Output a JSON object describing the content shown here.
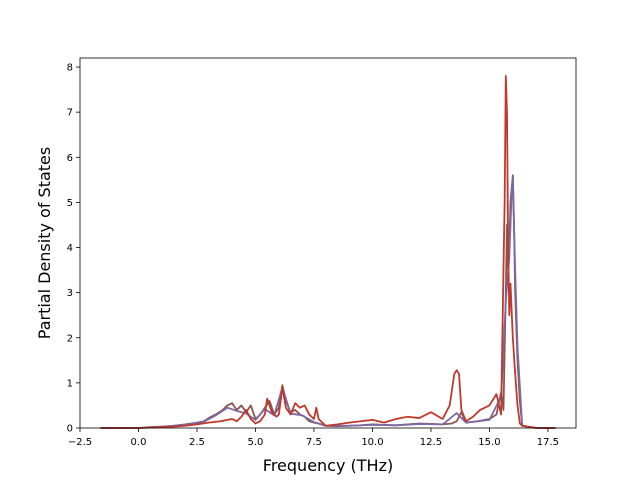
{
  "chart_data": {
    "type": "line",
    "title": "",
    "xlabel": "Frequency (THz)",
    "ylabel": "Partial Density of States",
    "xlim": [
      -2.5,
      18.7
    ],
    "ylim": [
      0,
      8.2
    ],
    "x_ticks": [
      "−2.5",
      "0.0",
      "2.5",
      "5.0",
      "7.5",
      "10.0",
      "12.5",
      "15.0",
      "17.5"
    ],
    "x_tick_values": [
      -2.5,
      0,
      2.5,
      5,
      7.5,
      10,
      12.5,
      15,
      17.5
    ],
    "y_ticks": [
      "0",
      "1",
      "2",
      "3",
      "4",
      "5",
      "6",
      "7",
      "8"
    ],
    "y_tick_values": [
      0,
      1,
      2,
      3,
      4,
      5,
      6,
      7,
      8
    ],
    "grid": false,
    "legend": "none",
    "series": [
      {
        "color": "#8c564b",
        "x": [
          -1.6,
          0.0,
          0.5,
          1.0,
          1.5,
          2.0,
          2.5,
          2.8,
          3.0,
          3.3,
          3.6,
          3.8,
          4.0,
          4.2,
          4.4,
          4.6,
          4.8,
          5.0,
          5.2,
          5.4,
          5.6,
          5.8,
          6.0,
          6.15,
          6.3,
          6.5,
          6.7,
          6.9,
          7.1,
          7.3,
          7.5,
          7.7,
          8.0,
          8.5,
          9.0,
          9.5,
          10.0,
          10.5,
          11.0,
          11.5,
          12.0,
          12.5,
          13.0,
          13.4,
          13.6,
          13.8,
          14.0,
          14.5,
          15.0,
          15.3,
          15.5,
          15.6,
          15.7,
          15.75,
          15.8,
          15.85,
          15.9,
          16.0,
          16.05,
          16.1,
          16.2,
          16.3,
          16.4,
          17.0,
          17.8
        ],
        "y": [
          0.0,
          0.0,
          0.02,
          0.03,
          0.05,
          0.08,
          0.12,
          0.15,
          0.22,
          0.3,
          0.4,
          0.5,
          0.55,
          0.4,
          0.5,
          0.35,
          0.5,
          0.2,
          0.3,
          0.45,
          0.6,
          0.3,
          0.45,
          0.95,
          0.6,
          0.35,
          0.4,
          0.3,
          0.25,
          0.15,
          0.12,
          0.1,
          0.05,
          0.04,
          0.05,
          0.06,
          0.08,
          0.07,
          0.06,
          0.08,
          0.1,
          0.09,
          0.08,
          0.1,
          0.15,
          0.35,
          0.12,
          0.15,
          0.2,
          0.3,
          0.8,
          0.4,
          3.0,
          4.5,
          3.5,
          4.0,
          5.0,
          5.6,
          4.5,
          3.0,
          1.5,
          0.6,
          0.05,
          0.0,
          0.0
        ]
      },
      {
        "color": "#7b68a6",
        "x": [
          -1.6,
          0.0,
          1.0,
          2.0,
          2.8,
          3.3,
          3.8,
          4.2,
          4.6,
          5.0,
          5.4,
          5.8,
          6.15,
          6.5,
          7.0,
          7.5,
          8.0,
          9.0,
          10.0,
          11.0,
          12.0,
          13.0,
          13.6,
          14.0,
          15.0,
          15.5,
          15.7,
          15.85,
          15.95,
          16.0,
          16.1,
          16.2,
          16.4,
          17.0,
          17.8
        ],
        "y": [
          0.0,
          0.0,
          0.03,
          0.07,
          0.14,
          0.28,
          0.45,
          0.38,
          0.32,
          0.18,
          0.42,
          0.28,
          0.9,
          0.32,
          0.28,
          0.13,
          0.05,
          0.05,
          0.07,
          0.06,
          0.09,
          0.08,
          0.33,
          0.12,
          0.18,
          0.7,
          2.8,
          3.8,
          5.2,
          5.55,
          3.5,
          1.8,
          0.05,
          0.0,
          0.0
        ]
      },
      {
        "color": "#c0392b",
        "x": [
          -1.6,
          0.0,
          0.5,
          1.0,
          1.5,
          2.0,
          2.5,
          3.0,
          3.5,
          3.8,
          4.0,
          4.2,
          4.4,
          4.6,
          4.8,
          5.0,
          5.2,
          5.4,
          5.5,
          5.7,
          5.9,
          6.0,
          6.15,
          6.3,
          6.5,
          6.7,
          6.9,
          7.1,
          7.3,
          7.5,
          7.6,
          7.7,
          8.0,
          8.5,
          9.0,
          9.5,
          10.0,
          10.5,
          11.0,
          11.5,
          12.0,
          12.5,
          13.0,
          13.3,
          13.5,
          13.6,
          13.7,
          13.8,
          14.0,
          14.3,
          14.6,
          15.0,
          15.3,
          15.5,
          15.6,
          15.65,
          15.7,
          15.75,
          15.8,
          15.85,
          15.9,
          16.0,
          16.1,
          16.2,
          16.3,
          16.4,
          17.0,
          17.8
        ],
        "y": [
          0.0,
          0.0,
          0.01,
          0.02,
          0.03,
          0.05,
          0.08,
          0.12,
          0.15,
          0.18,
          0.2,
          0.15,
          0.25,
          0.4,
          0.2,
          0.1,
          0.15,
          0.3,
          0.65,
          0.35,
          0.25,
          0.3,
          0.9,
          0.45,
          0.3,
          0.55,
          0.45,
          0.5,
          0.3,
          0.2,
          0.45,
          0.2,
          0.05,
          0.08,
          0.12,
          0.15,
          0.18,
          0.12,
          0.2,
          0.25,
          0.22,
          0.35,
          0.2,
          0.5,
          1.2,
          1.28,
          1.2,
          0.4,
          0.15,
          0.25,
          0.4,
          0.5,
          0.75,
          0.3,
          3.5,
          5.0,
          7.8,
          7.0,
          4.0,
          2.5,
          3.2,
          2.0,
          1.2,
          0.5,
          0.1,
          0.05,
          0.0,
          0.0
        ]
      }
    ]
  }
}
